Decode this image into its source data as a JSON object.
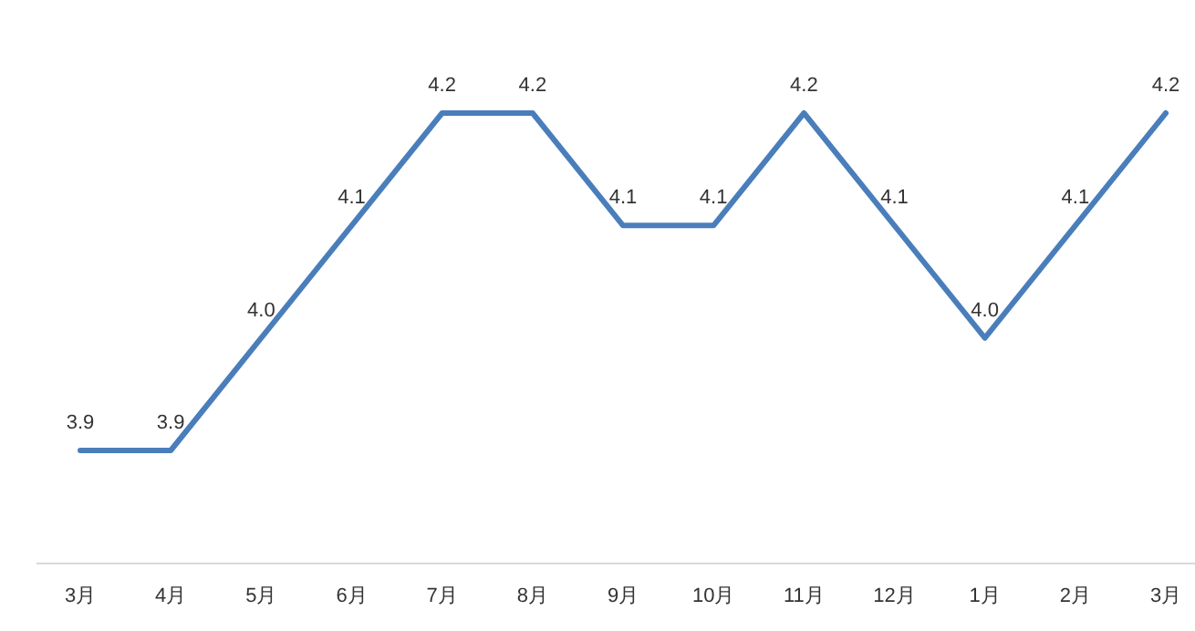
{
  "chart_data": {
    "type": "line",
    "categories": [
      "3月",
      "4月",
      "5月",
      "6月",
      "7月",
      "8月",
      "9月",
      "10月",
      "11月",
      "12月",
      "1月",
      "2月",
      "3月"
    ],
    "series": [
      {
        "color": "#4a7ebb",
        "values": [
          3.9,
          3.9,
          4.0,
          4.1,
          4.2,
          4.2,
          4.1,
          4.1,
          4.2,
          4.1,
          4.0,
          4.1,
          4.2
        ],
        "value_labels": [
          "3.9",
          "3.9",
          "4.0",
          "4.1",
          "4.2",
          "4.2",
          "4.1",
          "4.1",
          "4.2",
          "4.1",
          "4.0",
          "4.1",
          "4.2"
        ]
      }
    ],
    "marker": "none",
    "line_style": "solid"
  }
}
